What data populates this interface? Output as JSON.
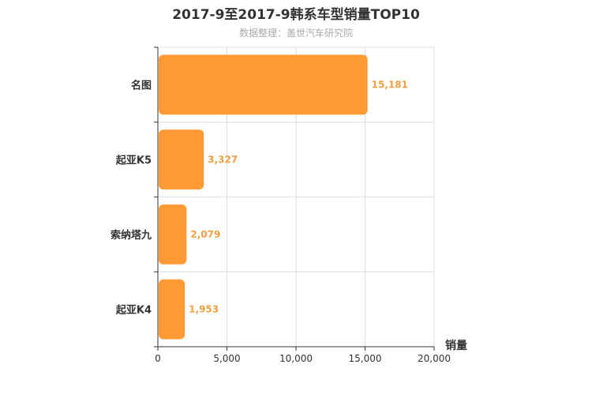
{
  "chart_data": {
    "type": "bar",
    "orientation": "horizontal",
    "title": "2017-9至2017-9韩系车型销量TOP10",
    "subtitle": "数据整理：盖世汽车研究院",
    "categories": [
      "名图",
      "起亚K5",
      "索纳塔九",
      "起亚K4"
    ],
    "series": [
      {
        "values": [
          15181,
          3327,
          2079,
          1953
        ]
      }
    ],
    "data_labels": [
      "15,181",
      "3,327",
      "2,079",
      "1,953"
    ],
    "xlabel": "销量",
    "ylabel": "",
    "xlim": [
      0,
      20000
    ],
    "x_ticks": [
      0,
      5000,
      10000,
      15000,
      20000
    ],
    "x_tick_labels": [
      "0",
      "5,000",
      "10,000",
      "15,000",
      "20,000"
    ],
    "grid": true,
    "bar_color": "#ff9933"
  }
}
